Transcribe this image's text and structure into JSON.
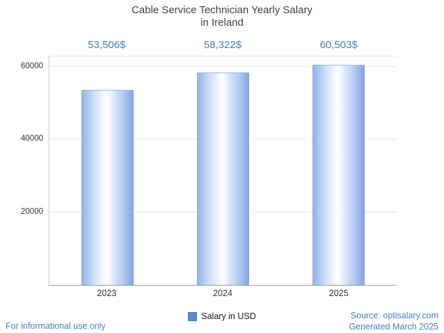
{
  "title_line1": "Cable Service Technician Yearly Salary",
  "title_line2": "in Ireland",
  "chart_data": {
    "type": "bar",
    "title": "Cable Service Technician Yearly Salary in Ireland",
    "categories": [
      "2023",
      "2024",
      "2025"
    ],
    "values": [
      53506,
      58322,
      60503
    ],
    "value_labels": [
      "53,506$",
      "58,322$",
      "60,503$"
    ],
    "series_name": "Salary in USD",
    "xlabel": "",
    "ylabel": "",
    "ylim": [
      0,
      62900
    ],
    "yticks": [
      20000,
      40000,
      60000
    ],
    "grid": true,
    "legend_position": "bottom"
  },
  "legend": {
    "label": "Salary in USD"
  },
  "footer": {
    "left": "For informational use only",
    "right_line1": "Source: optisalary.com",
    "right_line2": "Generated March 2025"
  },
  "colors": {
    "accent_blue": "#4a7ebe",
    "bar_blue": "#8fb1e8",
    "legend_blue": "#5b87ce",
    "title_gray": "#3f3f3f"
  }
}
